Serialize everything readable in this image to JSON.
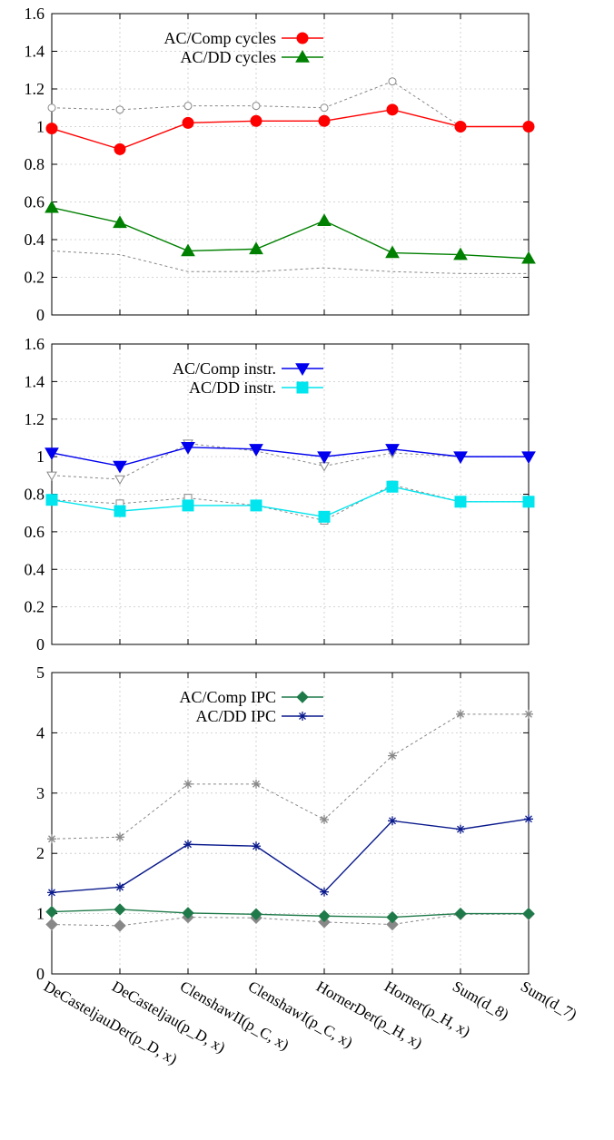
{
  "colors": {
    "comp_cycles": "#ff0000",
    "dd_cycles": "#008000",
    "comp_instr": "#0000ee",
    "dd_instr": "#00e5ee",
    "comp_ipc": "#1f7a4a",
    "dd_ipc": "#0a1a8c",
    "reference": "#888888",
    "grid": "#c8c8c8"
  },
  "chart_data": [
    {
      "type": "line",
      "ylim": [
        0,
        1.6
      ],
      "yticks": [
        "0",
        "0.2",
        "0.4",
        "0.6",
        "0.8",
        "1",
        "1.2",
        "1.4",
        "1.6"
      ],
      "grid": true,
      "legend_position": "top-left",
      "series": [
        {
          "name": "AC/Comp cycles",
          "marker": "circle",
          "style": "solid",
          "values": [
            0.99,
            0.88,
            1.02,
            1.03,
            1.03,
            1.09,
            1.0,
            1.0
          ]
        },
        {
          "name": "AC/DD cycles",
          "marker": "triangle-up",
          "style": "solid",
          "values": [
            0.57,
            0.49,
            0.34,
            0.35,
            0.5,
            0.33,
            0.32,
            0.3
          ]
        },
        {
          "marker": "circle-open",
          "style": "dotted",
          "values": [
            1.1,
            1.09,
            1.11,
            1.11,
            1.1,
            1.24,
            1.0,
            1.0
          ]
        },
        {
          "marker": "triangle-open",
          "style": "dotted",
          "values": [
            0.34,
            0.32,
            0.23,
            0.23,
            0.25,
            0.23,
            0.22,
            0.22
          ]
        }
      ]
    },
    {
      "type": "line",
      "ylim": [
        0,
        1.6
      ],
      "yticks": [
        "0",
        "0.2",
        "0.4",
        "0.6",
        "0.8",
        "1",
        "1.2",
        "1.4",
        "1.6"
      ],
      "grid": true,
      "legend_position": "top-center",
      "series": [
        {
          "name": "AC/Comp instr.",
          "marker": "triangle-down",
          "style": "solid",
          "values": [
            1.02,
            0.95,
            1.05,
            1.04,
            1.0,
            1.04,
            1.0,
            1.0
          ]
        },
        {
          "name": "AC/DD instr.",
          "marker": "square",
          "style": "solid",
          "values": [
            0.77,
            0.71,
            0.74,
            0.74,
            0.68,
            0.84,
            0.76,
            0.76
          ]
        },
        {
          "marker": "triangle-down-open",
          "style": "dotted",
          "values": [
            0.9,
            0.88,
            1.07,
            1.03,
            0.95,
            1.02,
            1.0,
            1.0
          ]
        },
        {
          "marker": "square-open",
          "style": "dotted",
          "values": [
            0.77,
            0.75,
            0.78,
            0.74,
            0.66,
            0.85,
            0.76,
            0.76
          ]
        }
      ]
    },
    {
      "type": "line",
      "ylim": [
        0,
        5
      ],
      "yticks": [
        "0",
        "1",
        "2",
        "3",
        "4",
        "5"
      ],
      "grid": true,
      "legend_position": "top-left",
      "series": [
        {
          "name": "AC/Comp IPC",
          "marker": "diamond",
          "style": "solid",
          "values": [
            1.03,
            1.07,
            1.01,
            0.99,
            0.96,
            0.94,
            1.0,
            1.0
          ]
        },
        {
          "name": "AC/DD IPC",
          "marker": "star",
          "style": "solid",
          "values": [
            1.35,
            1.44,
            2.15,
            2.12,
            1.36,
            2.54,
            2.4,
            2.57
          ]
        },
        {
          "marker": "star",
          "style": "dotted",
          "values": [
            2.24,
            2.27,
            3.15,
            3.15,
            2.56,
            3.62,
            4.31,
            4.31
          ]
        },
        {
          "marker": "diamond",
          "style": "dotted",
          "values": [
            0.82,
            0.8,
            0.94,
            0.93,
            0.86,
            0.82,
            0.99,
            0.99
          ]
        }
      ]
    }
  ],
  "legend_labels": [
    [
      "AC/Comp cycles",
      "AC/DD cycles"
    ],
    [
      "AC/Comp instr.",
      "AC/DD instr."
    ],
    [
      "AC/Comp IPC",
      "AC/DD IPC"
    ]
  ],
  "categories": [
    "DeCasteljauDer(p_D, x)",
    "DeCasteljau(p_D, x)",
    "ClenshawII(p_C, x)",
    "ClenshawI(p_C, x)",
    "HornerDer(p_H, x)",
    "Horner(p_H, x)",
    "Sum(d_8)",
    "Sum(d_7)"
  ]
}
